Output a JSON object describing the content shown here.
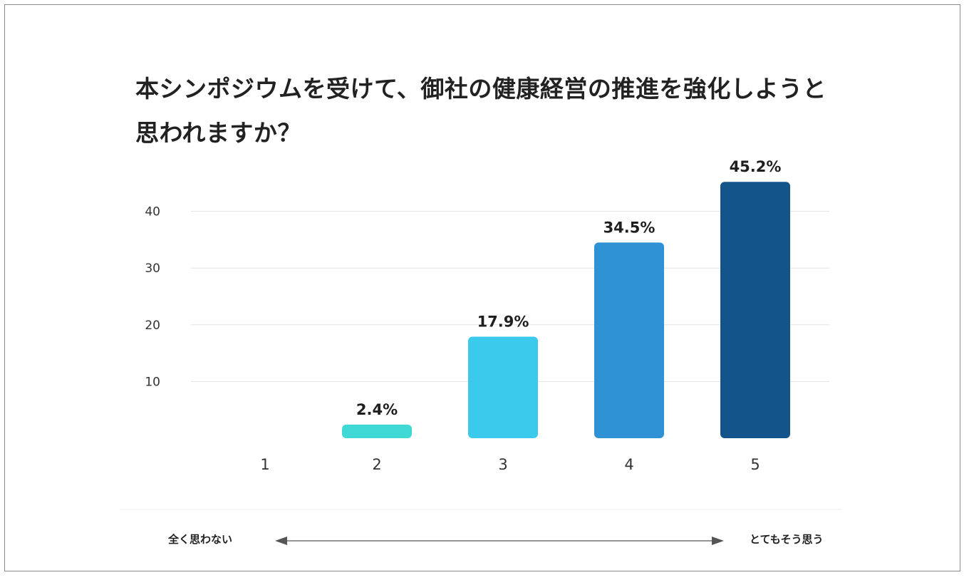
{
  "title_lines": [
    "本シンポジウムを受けて、御社の健康経営の推進を強化しようと",
    "思われますか？"
  ],
  "chart_data": {
    "type": "bar",
    "title": "本シンポジウムを受けて、御社の健康経営の推進を強化しようと思われますか？",
    "categories": [
      "1",
      "2",
      "3",
      "4",
      "5"
    ],
    "values": [
      0,
      2.4,
      17.9,
      34.5,
      45.2
    ],
    "value_labels": [
      "",
      "2.4%",
      "17.9%",
      "34.5%",
      "45.2%"
    ],
    "colors": [
      "#3fd8d4",
      "#3fd8d4",
      "#3bc9ec",
      "#2e92d4",
      "#13548a"
    ],
    "yticks": [
      10,
      20,
      30,
      40
    ],
    "ylim": [
      0,
      45.2
    ],
    "xlabel": "",
    "ylabel": "",
    "grid": true,
    "legend": "none"
  },
  "scale": {
    "left_label": "全く思わない",
    "right_label": "とてもそう思う"
  }
}
